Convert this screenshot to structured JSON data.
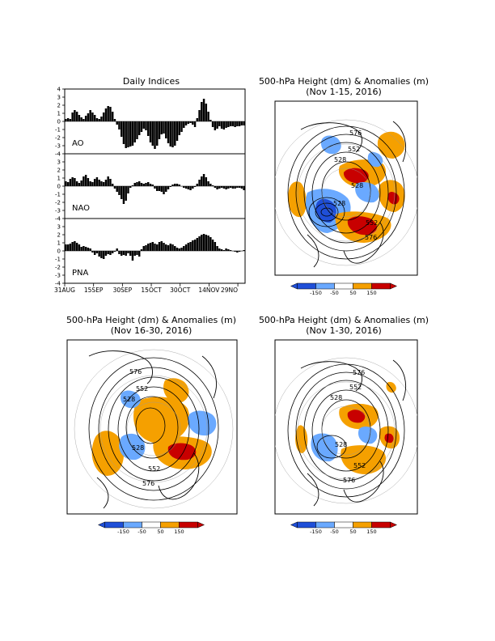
{
  "chart_data": [
    {
      "type": "bar",
      "title": "Daily Indices",
      "ylim": [
        -4,
        4
      ],
      "yticks": [
        4,
        3,
        2,
        1,
        0,
        -1,
        -2,
        -3,
        -4
      ],
      "xticks": [
        "31AUG",
        "15SEP",
        "30SEP",
        "15OCT",
        "30OCT",
        "14NOV",
        "29NO"
      ],
      "grid": false,
      "series": [
        {
          "name": "AO",
          "values": [
            0.3,
            0.4,
            0.3,
            1.1,
            1.4,
            1.2,
            0.8,
            0.5,
            0.3,
            0.7,
            1.0,
            1.4,
            1.1,
            0.8,
            0.4,
            0.3,
            0.6,
            1.1,
            1.6,
            1.9,
            1.8,
            1.2,
            0.3,
            -0.4,
            -1.0,
            -1.9,
            -2.8,
            -3.3,
            -3.2,
            -3.1,
            -3.0,
            -2.6,
            -2.2,
            -1.7,
            -1.3,
            -0.9,
            -1.1,
            -1.8,
            -2.6,
            -3.0,
            -3.4,
            -3.0,
            -2.2,
            -1.6,
            -1.5,
            -2.1,
            -2.7,
            -3.1,
            -3.2,
            -3.0,
            -2.4,
            -1.7,
            -1.3,
            -0.8,
            -0.5,
            -0.3,
            -0.2,
            -0.4,
            -0.7,
            0.4,
            1.4,
            2.4,
            2.8,
            2.2,
            1.2,
            0.2,
            -0.7,
            -1.1,
            -0.9,
            -0.6,
            -0.9,
            -1.0,
            -0.8,
            -0.7,
            -0.6,
            -0.6,
            -0.7,
            -0.6,
            -0.6,
            -0.5,
            -0.5
          ]
        },
        {
          "name": "NAO",
          "values": [
            0.6,
            0.5,
            0.9,
            1.1,
            1.0,
            0.6,
            0.4,
            0.7,
            1.2,
            1.4,
            1.0,
            0.6,
            0.5,
            0.9,
            1.1,
            0.8,
            0.6,
            0.5,
            0.8,
            1.2,
            0.9,
            0.3,
            -0.3,
            -0.7,
            -1.1,
            -1.6,
            -2.2,
            -1.8,
            -0.9,
            -0.2,
            0.1,
            0.4,
            0.5,
            0.6,
            0.4,
            0.3,
            0.4,
            0.5,
            0.3,
            0.2,
            -0.3,
            -0.6,
            -0.6,
            -0.7,
            -1.0,
            -0.7,
            -0.4,
            -0.1,
            0.2,
            0.3,
            0.3,
            0.2,
            0.0,
            -0.2,
            -0.3,
            -0.4,
            -0.5,
            -0.3,
            -0.1,
            0.3,
            0.8,
            1.2,
            1.5,
            1.1,
            0.6,
            0.3,
            0.1,
            -0.2,
            -0.4,
            -0.3,
            -0.2,
            -0.3,
            -0.4,
            -0.3,
            -0.2,
            -0.3,
            -0.3,
            -0.2,
            -0.2,
            -0.3,
            -0.5
          ]
        },
        {
          "name": "PNA",
          "values": [
            0.8,
            0.8,
            0.9,
            1.1,
            1.2,
            1.0,
            0.8,
            0.5,
            0.6,
            0.5,
            0.4,
            0.3,
            -0.2,
            -0.5,
            -0.3,
            -0.7,
            -0.9,
            -1.0,
            -0.6,
            -0.4,
            -0.5,
            -0.3,
            -0.1,
            0.3,
            -0.4,
            -0.6,
            -0.5,
            -0.6,
            -0.3,
            -0.6,
            -1.2,
            -0.6,
            -0.5,
            -0.7,
            0.2,
            0.6,
            0.7,
            0.9,
            1.0,
            1.1,
            0.9,
            0.8,
            1.1,
            1.2,
            1.0,
            0.8,
            0.7,
            0.9,
            0.8,
            0.6,
            0.4,
            0.3,
            0.4,
            0.6,
            0.8,
            1.0,
            1.1,
            1.3,
            1.4,
            1.6,
            1.8,
            2.0,
            2.1,
            2.0,
            1.9,
            1.7,
            1.4,
            1.1,
            0.6,
            0.3,
            0.2,
            0.1,
            0.3,
            0.2,
            0.1,
            0.0,
            -0.1,
            -0.2,
            -0.1,
            0.0,
            0.1
          ]
        }
      ]
    },
    {
      "type": "heatmap",
      "title": "500-hPa Height (dm) & Anomalies (m)",
      "subtitle": "(Nov 1-15, 2016)",
      "contour_labels": [
        "576",
        "552",
        "528",
        "528",
        "528",
        "552",
        "576"
      ],
      "colorbar": {
        "ticks": [
          "-150",
          "-50",
          "50",
          "150"
        ],
        "colors": [
          "#1f4fd8",
          "#6aa9ff",
          "#ffffff",
          "#f5a000",
          "#c80000"
        ]
      }
    },
    {
      "type": "heatmap",
      "title": "500-hPa Height (dm) & Anomalies (m)",
      "subtitle": "(Nov 16-30, 2016)",
      "contour_labels": [
        "576",
        "552",
        "528",
        "528",
        "552",
        "576"
      ],
      "colorbar": {
        "ticks": [
          "-150",
          "-50",
          "50",
          "150"
        ],
        "colors": [
          "#1f4fd8",
          "#6aa9ff",
          "#ffffff",
          "#f5a000",
          "#c80000"
        ]
      }
    },
    {
      "type": "heatmap",
      "title": "500-hPa Height (dm) & Anomalies (m)",
      "subtitle": "(Nov 1-30, 2016)",
      "contour_labels": [
        "576",
        "552",
        "528",
        "528",
        "552",
        "576"
      ],
      "colorbar": {
        "ticks": [
          "-150",
          "-50",
          "50",
          "150"
        ],
        "colors": [
          "#1f4fd8",
          "#6aa9ff",
          "#ffffff",
          "#f5a000",
          "#c80000"
        ]
      }
    }
  ]
}
